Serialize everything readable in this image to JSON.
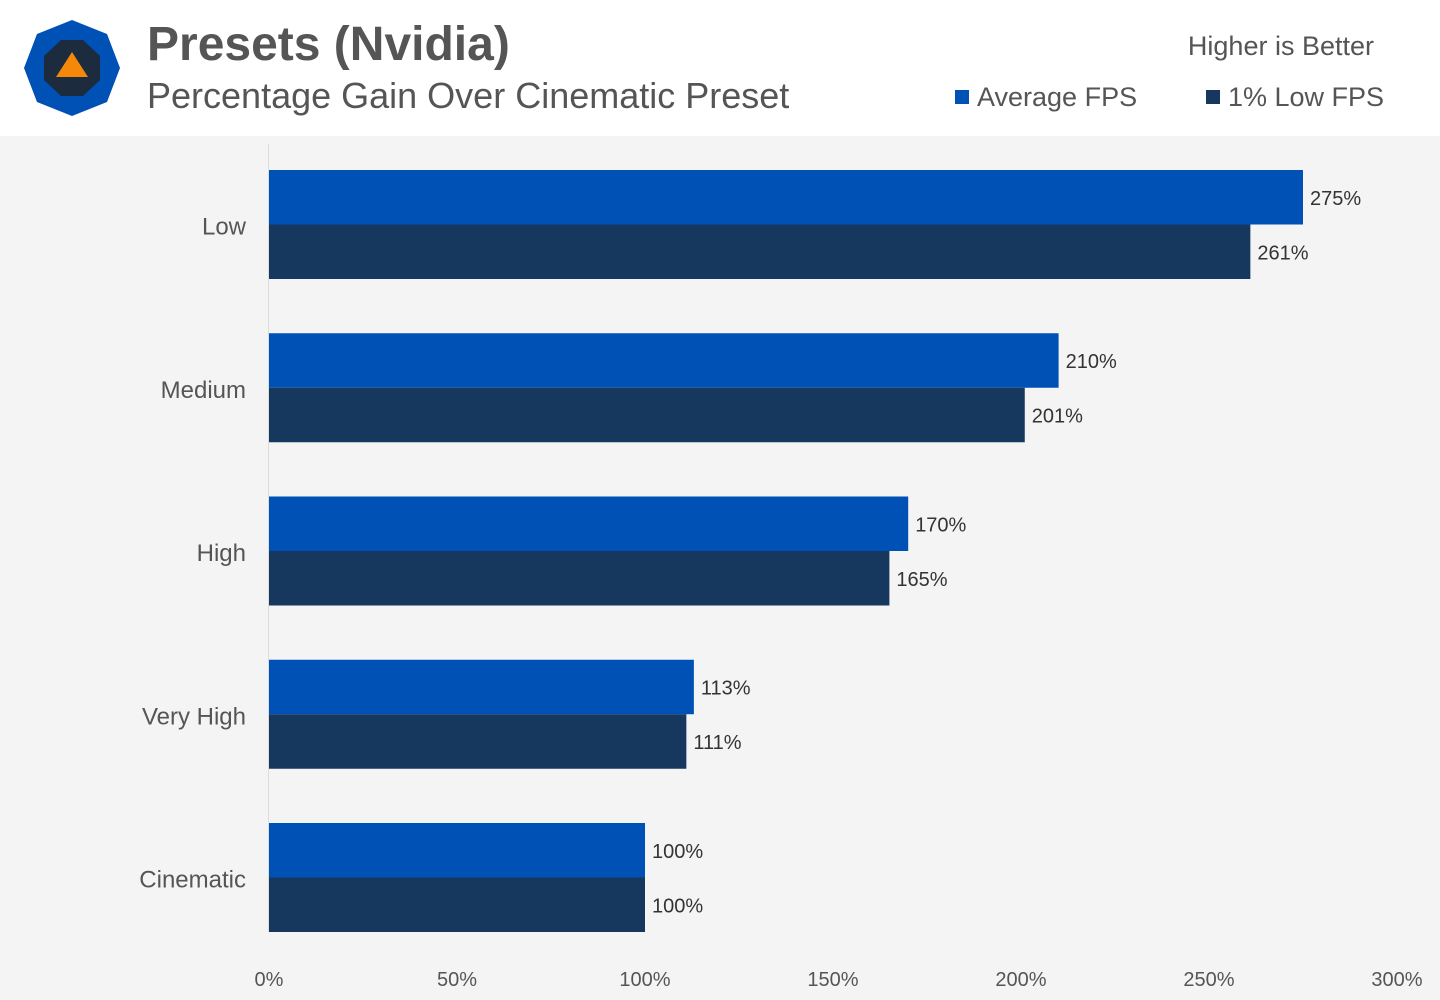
{
  "header": {
    "logo": "hexagon-triangle-logo",
    "title": "Presets (Nvidia)",
    "subtitle": "Percentage Gain Over Cinematic Preset",
    "note": "Higher is Better"
  },
  "legend": [
    {
      "label": "Average FPS",
      "color": "#0051b5"
    },
    {
      "label": "1% Low FPS",
      "color": "#16375e"
    }
  ],
  "colors": {
    "background": "#f4f4f4",
    "header_bg": "#ffffff",
    "text": "#555555",
    "logo_outer": "#0051b5",
    "logo_inner": "#1c2b3d",
    "logo_triangle": "#f5870a"
  },
  "chart_data": {
    "type": "bar",
    "orientation": "horizontal",
    "categories": [
      "Low",
      "Medium",
      "High",
      "Very High",
      "Cinematic"
    ],
    "series": [
      {
        "name": "Average FPS",
        "values": [
          275,
          210,
          170,
          113,
          100
        ],
        "labels": [
          "275%",
          "210%",
          "170%",
          "113%",
          "100%"
        ]
      },
      {
        "name": "1% Low FPS",
        "values": [
          261,
          201,
          165,
          111,
          100
        ],
        "labels": [
          "261%",
          "201%",
          "165%",
          "111%",
          "100%"
        ]
      }
    ],
    "xlim": [
      0,
      300
    ],
    "xticks": [
      0,
      50,
      100,
      150,
      200,
      250,
      300
    ],
    "xtick_labels": [
      "0%",
      "50%",
      "100%",
      "150%",
      "200%",
      "250%",
      "300%"
    ],
    "grid": false,
    "legend_position": "top-right"
  }
}
